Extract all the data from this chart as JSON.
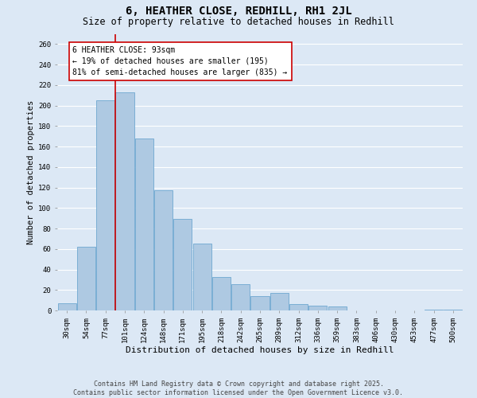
{
  "title": "6, HEATHER CLOSE, REDHILL, RH1 2JL",
  "subtitle": "Size of property relative to detached houses in Redhill",
  "xlabel": "Distribution of detached houses by size in Redhill",
  "ylabel": "Number of detached properties",
  "bar_labels": [
    "30sqm",
    "54sqm",
    "77sqm",
    "101sqm",
    "124sqm",
    "148sqm",
    "171sqm",
    "195sqm",
    "218sqm",
    "242sqm",
    "265sqm",
    "289sqm",
    "312sqm",
    "336sqm",
    "359sqm",
    "383sqm",
    "406sqm",
    "430sqm",
    "453sqm",
    "477sqm",
    "500sqm"
  ],
  "bar_values": [
    7,
    62,
    205,
    213,
    168,
    117,
    89,
    65,
    33,
    26,
    14,
    17,
    6,
    5,
    4,
    0,
    0,
    0,
    0,
    1,
    1
  ],
  "bar_color": "#aec9e2",
  "bar_edge_color": "#6fa8d0",
  "vline_color": "#cc0000",
  "vline_x_index": 2.5,
  "annotation_text": "6 HEATHER CLOSE: 93sqm\n← 19% of detached houses are smaller (195)\n81% of semi-detached houses are larger (835) →",
  "annotation_box_facecolor": "white",
  "annotation_box_edgecolor": "#cc0000",
  "ylim": [
    0,
    270
  ],
  "yticks": [
    0,
    20,
    40,
    60,
    80,
    100,
    120,
    140,
    160,
    180,
    200,
    220,
    240,
    260
  ],
  "background_color": "#dce8f5",
  "plot_background_color": "#dce8f5",
  "grid_color": "white",
  "footer_line1": "Contains HM Land Registry data © Crown copyright and database right 2025.",
  "footer_line2": "Contains public sector information licensed under the Open Government Licence v3.0.",
  "title_fontsize": 10,
  "subtitle_fontsize": 8.5,
  "xlabel_fontsize": 8,
  "ylabel_fontsize": 7.5,
  "tick_fontsize": 6.5,
  "annotation_fontsize": 7,
  "footer_fontsize": 6
}
